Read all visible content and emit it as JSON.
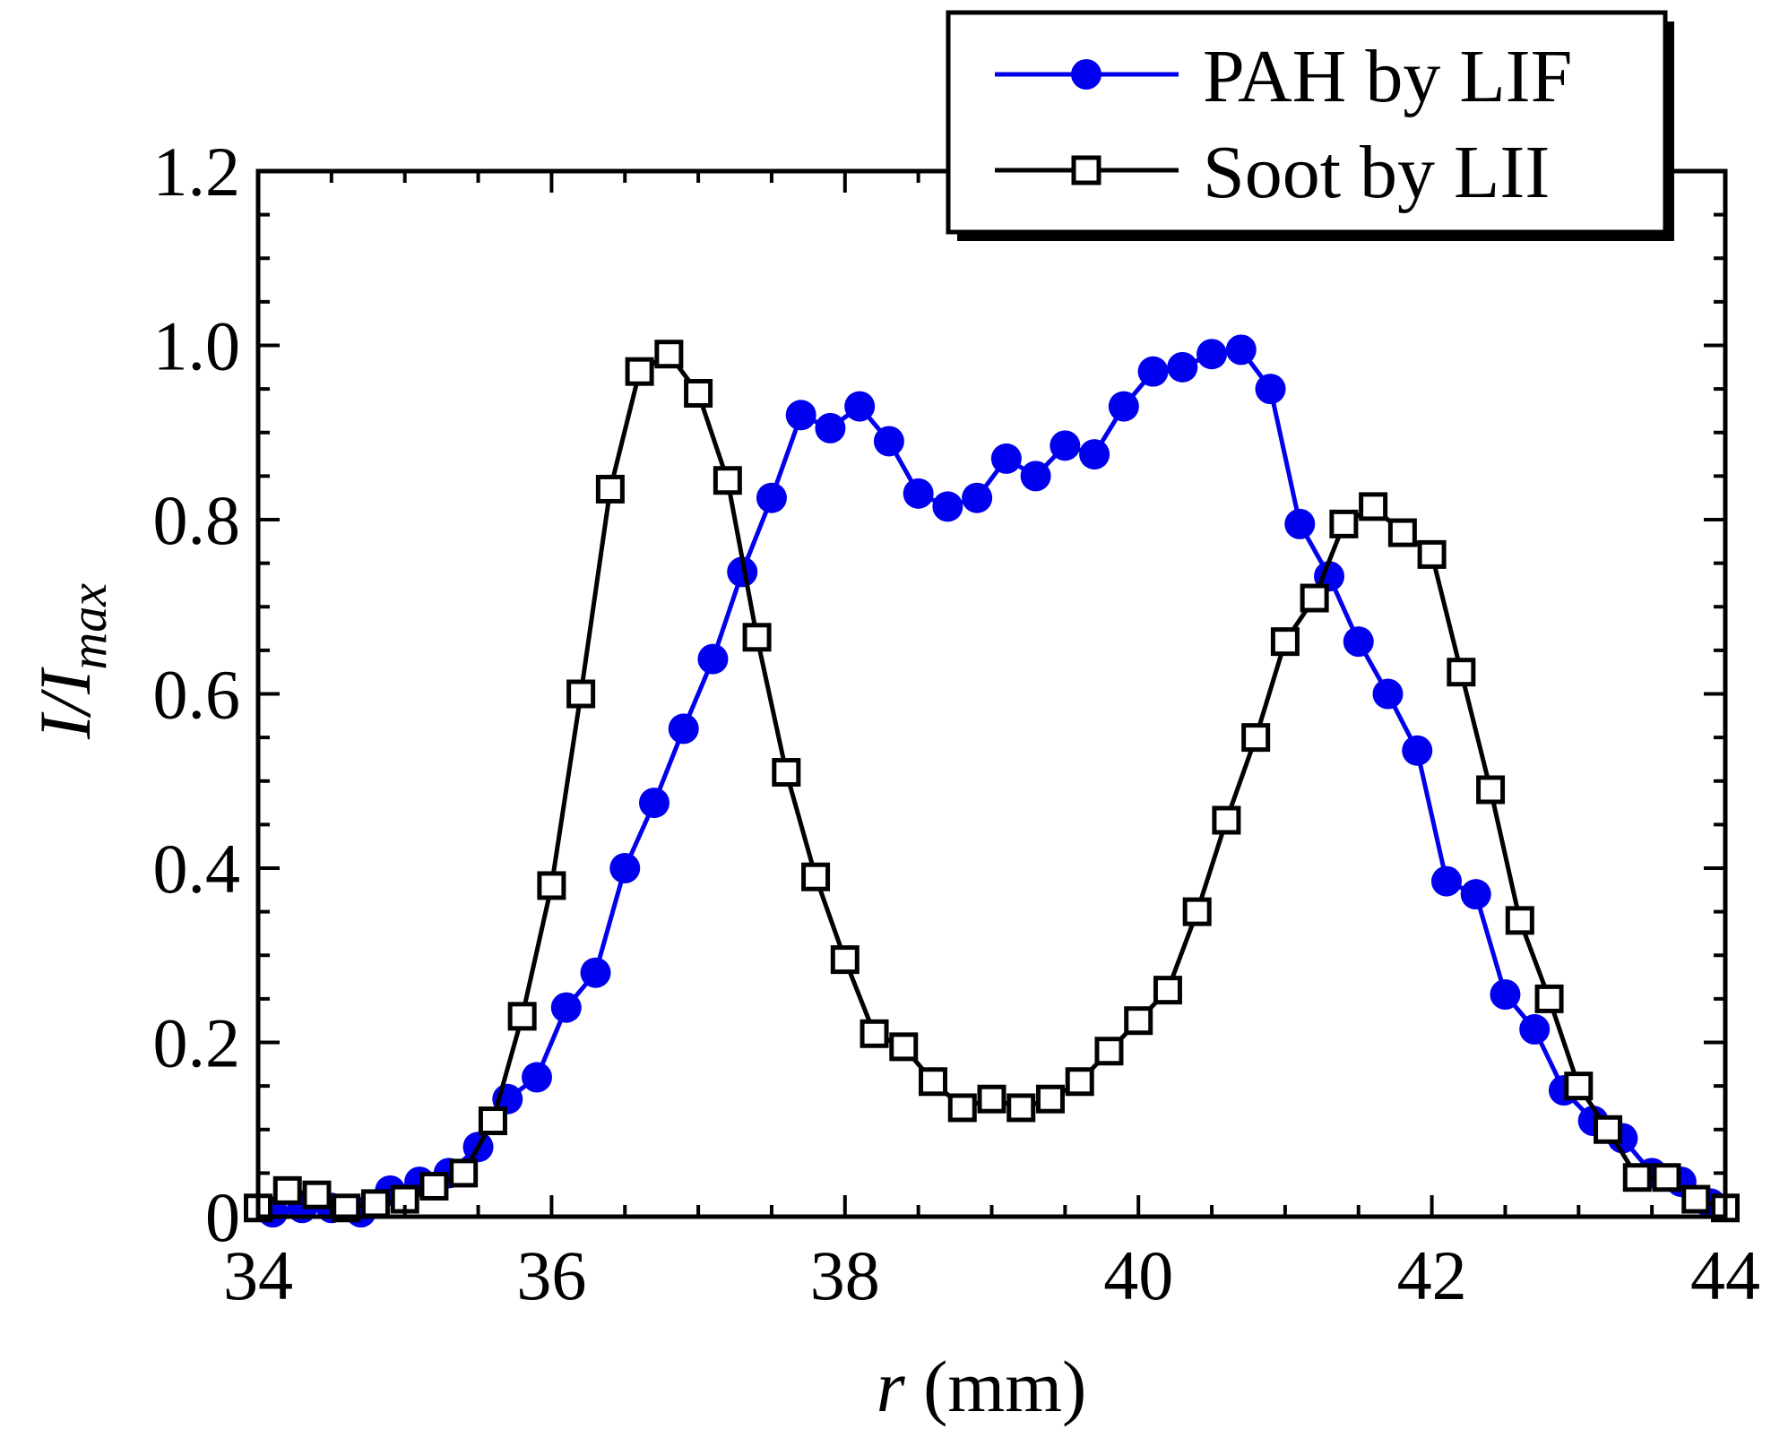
{
  "chart_data": {
    "type": "line",
    "xlabel_var": "r",
    "xlabel_unit": " (mm)",
    "ylabel_main": "I/I",
    "ylabel_sub": "max",
    "xlim": [
      34,
      44
    ],
    "ylim": [
      0,
      1.2
    ],
    "xticks": [
      "34",
      "36",
      "38",
      "40",
      "42",
      "44"
    ],
    "yticks": [
      "0",
      "0.2",
      "0.4",
      "0.6",
      "0.8",
      "1.0",
      "1.2"
    ],
    "legend_position": "top-right",
    "series": [
      {
        "name": "PAH by LIF",
        "color": "#0000ee",
        "marker": "filled-circle",
        "x": [
          34.1,
          34.3,
          34.5,
          34.7,
          34.9,
          35.1,
          35.3,
          35.5,
          35.7,
          35.9,
          36.1,
          36.3,
          36.5,
          36.7,
          36.9,
          37.1,
          37.3,
          37.5,
          37.7,
          37.9,
          38.1,
          38.3,
          38.5,
          38.7,
          38.9,
          39.1,
          39.3,
          39.5,
          39.7,
          39.9,
          40.1,
          40.3,
          40.5,
          40.7,
          40.9,
          41.1,
          41.3,
          41.5,
          41.7,
          41.9,
          42.1,
          42.3,
          42.5,
          42.7,
          42.9,
          43.1,
          43.3,
          43.5,
          43.7,
          43.9
        ],
        "y": [
          0.005,
          0.01,
          0.01,
          0.005,
          0.03,
          0.04,
          0.05,
          0.08,
          0.135,
          0.16,
          0.24,
          0.28,
          0.4,
          0.475,
          0.56,
          0.64,
          0.74,
          0.825,
          0.92,
          0.905,
          0.93,
          0.89,
          0.83,
          0.815,
          0.825,
          0.87,
          0.85,
          0.885,
          0.875,
          0.93,
          0.97,
          0.975,
          0.99,
          0.995,
          0.95,
          0.795,
          0.735,
          0.66,
          0.6,
          0.535,
          0.385,
          0.37,
          0.255,
          0.215,
          0.145,
          0.11,
          0.09,
          0.05,
          0.04,
          0.015
        ]
      },
      {
        "name": "Soot by LII",
        "color": "#000000",
        "marker": "open-square",
        "x": [
          34.0,
          34.2,
          34.4,
          34.6,
          34.8,
          35.0,
          35.2,
          35.4,
          35.6,
          35.8,
          36.0,
          36.2,
          36.4,
          36.6,
          36.8,
          37.0,
          37.2,
          37.4,
          37.6,
          37.8,
          38.0,
          38.2,
          38.4,
          38.6,
          38.8,
          39.0,
          39.2,
          39.4,
          39.6,
          39.8,
          40.0,
          40.2,
          40.4,
          40.6,
          40.8,
          41.0,
          41.2,
          41.4,
          41.6,
          41.8,
          42.0,
          42.2,
          42.4,
          42.6,
          42.8,
          43.0,
          43.2,
          43.4,
          43.6,
          43.8,
          44.0
        ],
        "y": [
          0.01,
          0.03,
          0.025,
          0.01,
          0.015,
          0.02,
          0.035,
          0.05,
          0.11,
          0.23,
          0.38,
          0.6,
          0.835,
          0.97,
          0.99,
          0.945,
          0.845,
          0.665,
          0.51,
          0.39,
          0.295,
          0.21,
          0.195,
          0.155,
          0.125,
          0.135,
          0.125,
          0.135,
          0.155,
          0.19,
          0.225,
          0.26,
          0.35,
          0.455,
          0.55,
          0.66,
          0.71,
          0.795,
          0.815,
          0.785,
          0.76,
          0.625,
          0.49,
          0.34,
          0.25,
          0.15,
          0.1,
          0.045,
          0.045,
          0.02,
          0.01
        ]
      }
    ]
  }
}
